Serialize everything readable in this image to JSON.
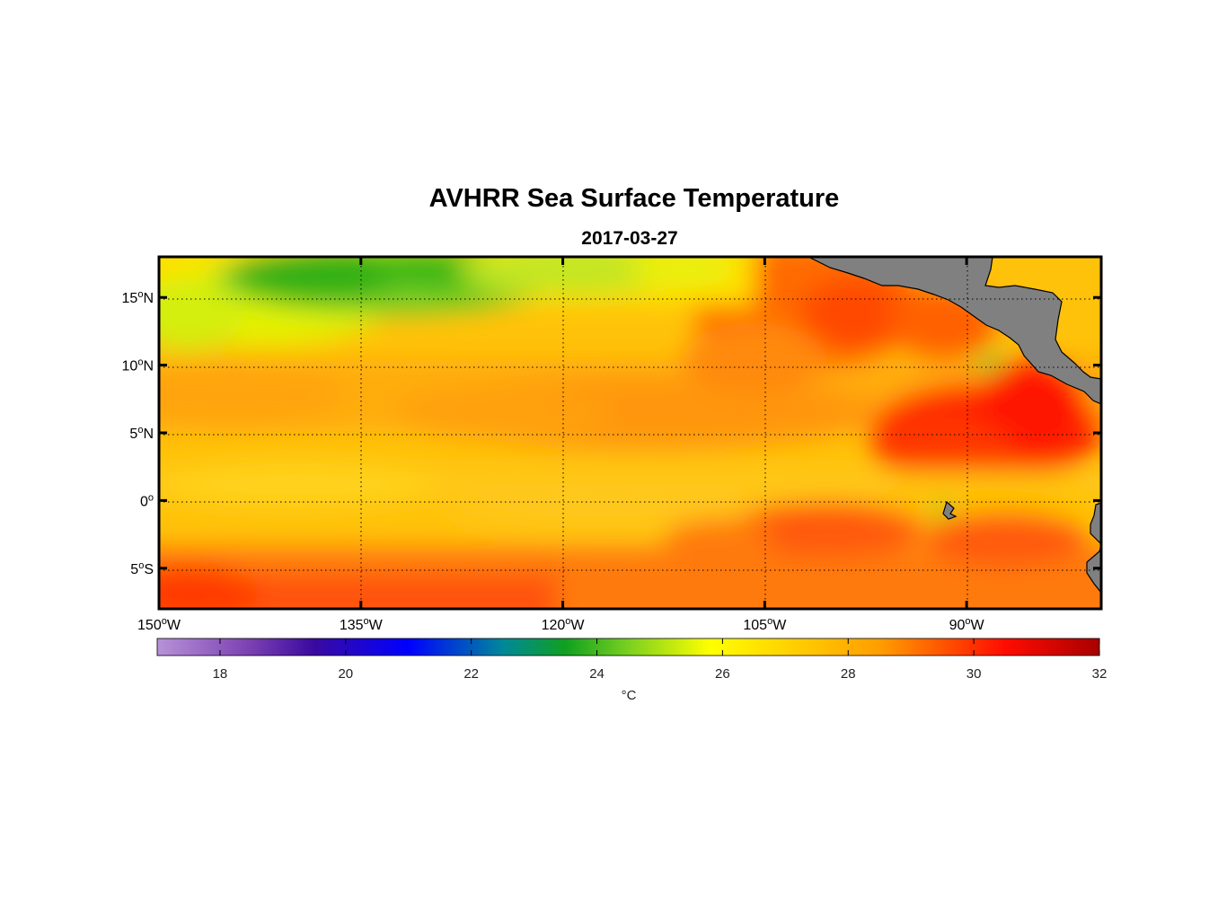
{
  "title": "AVHRR Sea Surface Temperature",
  "subtitle": "2017-03-27",
  "chart_data": {
    "type": "heatmap",
    "title": "AVHRR Sea Surface Temperature",
    "subtitle": "2017-03-27",
    "variable": "sea surface temperature",
    "units": "°C",
    "lon_range": [
      -150,
      -80
    ],
    "lat_range": [
      -8,
      18
    ],
    "lon_ticks": [
      {
        "value": -150,
        "label": "150",
        "hemi": "W"
      },
      {
        "value": -135,
        "label": "135",
        "hemi": "W"
      },
      {
        "value": -120,
        "label": "120",
        "hemi": "W"
      },
      {
        "value": -105,
        "label": "105",
        "hemi": "W"
      },
      {
        "value": -90,
        "label": "90",
        "hemi": "W"
      }
    ],
    "lat_ticks": [
      {
        "value": 15,
        "label": "15",
        "hemi": "N"
      },
      {
        "value": 10,
        "label": "10",
        "hemi": "N"
      },
      {
        "value": 5,
        "label": "5",
        "hemi": "N"
      },
      {
        "value": 0,
        "label": "0",
        "hemi": ""
      },
      {
        "value": -5,
        "label": "5",
        "hemi": "S"
      }
    ],
    "gridlines": true,
    "colorbar": {
      "range": [
        17,
        32
      ],
      "ticks": [
        "18",
        "20",
        "22",
        "24",
        "26",
        "28",
        "30",
        "32"
      ],
      "label": "°C",
      "stops": [
        {
          "value": 17,
          "color": "#b792d8"
        },
        {
          "value": 18.5,
          "color": "#7a3fb0"
        },
        {
          "value": 19.5,
          "color": "#3a0aa0"
        },
        {
          "value": 21,
          "color": "#0000ff"
        },
        {
          "value": 22.5,
          "color": "#00889a"
        },
        {
          "value": 23.5,
          "color": "#10a020"
        },
        {
          "value": 24.5,
          "color": "#7ad020"
        },
        {
          "value": 25.8,
          "color": "#ffff00"
        },
        {
          "value": 27,
          "color": "#ffd400"
        },
        {
          "value": 28.5,
          "color": "#ff9d00"
        },
        {
          "value": 30.5,
          "color": "#ff0c00"
        },
        {
          "value": 32,
          "color": "#a80000"
        }
      ]
    },
    "temperature_features": [
      {
        "region": "cool band 20N-14N, 150W-125W",
        "approx_c": 24.3
      },
      {
        "region": "north subtropics 150W-110W",
        "approx_c": 26.5
      },
      {
        "region": "equatorial belt",
        "approx_c": 27.5
      },
      {
        "region": "warm pool off Central America 10N-3N, 95W-85W",
        "approx_c": 30.2
      },
      {
        "region": "south band 5S-8S",
        "approx_c": 29.2
      }
    ],
    "land": [
      "Mexico / Central America coast",
      "Galapagos",
      "South America coast"
    ]
  }
}
